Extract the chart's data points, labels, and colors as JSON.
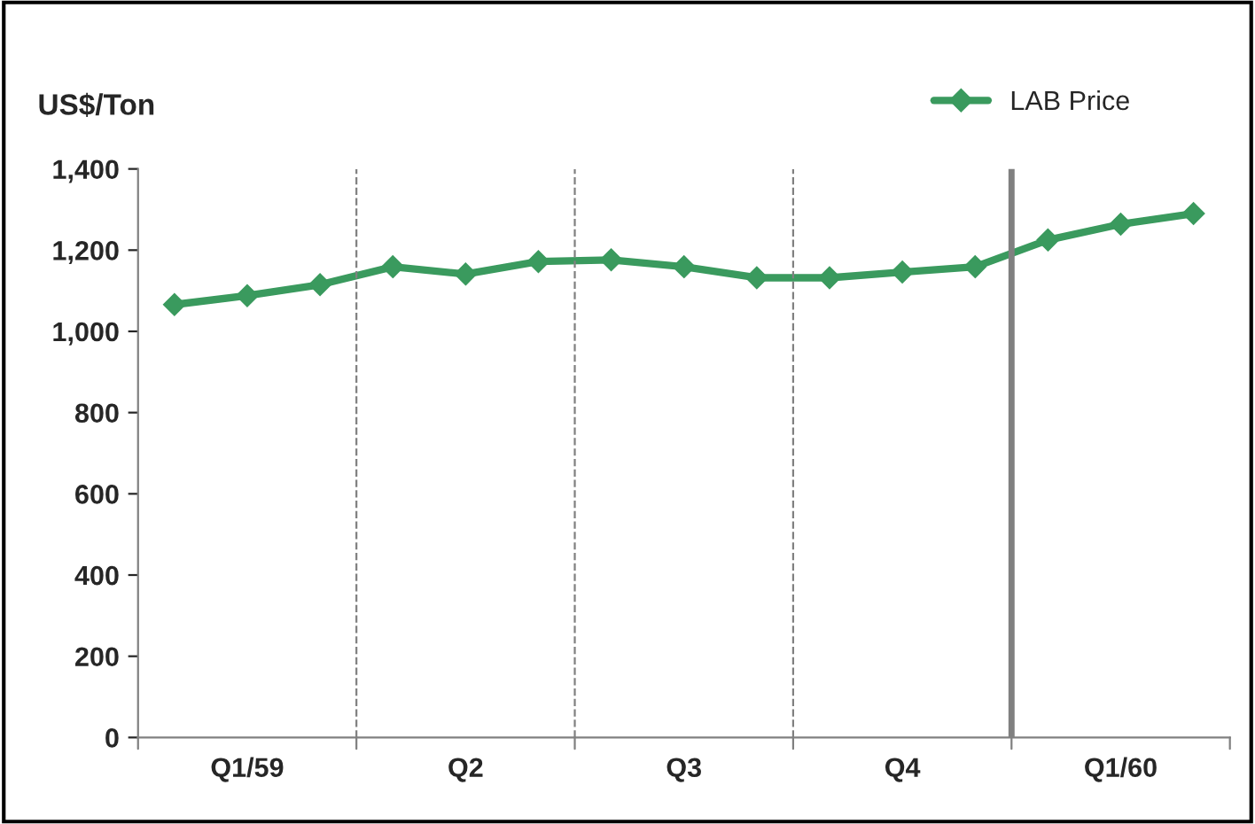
{
  "chart_data": {
    "type": "line",
    "ylabel": "US$/Ton",
    "categories": [
      null,
      "Q1/59",
      null,
      null,
      "Q2",
      null,
      null,
      "Q3",
      null,
      null,
      "Q4",
      null,
      null,
      "Q1/60",
      null
    ],
    "series": [
      {
        "name": "LAB Price",
        "color": "#3a9a5e",
        "values": [
          1066,
          1088,
          1115,
          1159,
          1141,
          1172,
          1176,
          1159,
          1132,
          1132,
          1146,
          1159,
          1225,
          1264,
          1290
        ]
      }
    ],
    "ylim": [
      0,
      1400
    ],
    "yticks": [
      0,
      {
        "value": 200,
        "label": "200"
      },
      {
        "value": 400,
        "label": "400"
      },
      {
        "value": 600,
        "label": "600"
      },
      {
        "value": 800,
        "label": "800"
      },
      {
        "value": 1000,
        "label": "1,000"
      },
      {
        "value": 1200,
        "label": "1,200"
      },
      {
        "value": 1400,
        "label": "1,400"
      }
    ],
    "marker": "diamond",
    "line_style": "solid",
    "grid": false,
    "legend": "top right"
  }
}
